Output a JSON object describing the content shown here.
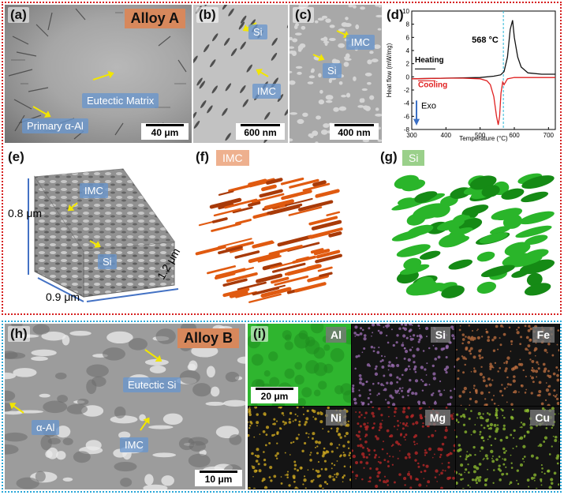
{
  "panels": {
    "a": {
      "label": "(a)",
      "title": "Alloy A",
      "tag_eutectic": "Eutectic Matrix",
      "tag_primary": "Primary α-Al",
      "scale": "40 μm"
    },
    "b": {
      "label": "(b)",
      "tag_si": "Si",
      "tag_imc": "IMC",
      "scale": "600 nm"
    },
    "c": {
      "label": "(c)",
      "tag_imc": "IMC",
      "tag_si": "Si",
      "scale": "400 nm"
    },
    "d": {
      "label": "(d)"
    },
    "e": {
      "label": "(e)",
      "tag_imc": "IMC",
      "tag_si": "Si",
      "dim_height": "0.8 μm",
      "dim_width": "0.9 μm",
      "dim_depth": "1.2 μm"
    },
    "f": {
      "label": "(f)",
      "tag": "IMC"
    },
    "g": {
      "label": "(g)",
      "tag": "Si"
    },
    "h": {
      "label": "(h)",
      "title": "Alloy B",
      "tag_eutectic": "Eutectic Si",
      "tag_al": "α-Al",
      "tag_imc": "IMC",
      "scale": "10 μm"
    },
    "i": {
      "label": "(i)",
      "scale": "20 μm",
      "maps": [
        {
          "element": "Al",
          "color": "#2fb52f"
        },
        {
          "element": "Si",
          "color": "#a070b8"
        },
        {
          "element": "Fe",
          "color": "#c07040"
        },
        {
          "element": "Ni",
          "color": "#d8b020"
        },
        {
          "element": "Mg",
          "color": "#c02828"
        },
        {
          "element": "Cu",
          "color": "#90c030"
        }
      ]
    }
  },
  "chart_data": {
    "type": "line",
    "xlabel": "Temperature (°C)",
    "ylabel": "Heat flow (mW/mg)",
    "xlim": [
      300,
      720
    ],
    "ylim": [
      -8,
      10
    ],
    "xticks": [
      300,
      400,
      500,
      600,
      700
    ],
    "yticks": [
      -8,
      -6,
      -4,
      -2,
      0,
      2,
      4,
      6,
      8,
      10
    ],
    "annotation_peak": "568 °C",
    "marker_x": 568,
    "heating_label": "Heating",
    "cooling_label": "Cooling",
    "exo_label": "Exo",
    "series": [
      {
        "name": "Heating",
        "color": "#111111",
        "x": [
          300,
          400,
          500,
          540,
          560,
          570,
          580,
          588,
          595,
          600,
          610,
          620,
          640,
          680,
          720
        ],
        "y": [
          -0.3,
          -0.2,
          -0.1,
          0.1,
          0.3,
          0.8,
          3.0,
          7.2,
          8.6,
          6.0,
          3.0,
          1.5,
          0.6,
          0.4,
          0.4
        ]
      },
      {
        "name": "Cooling",
        "color": "#e02020",
        "x": [
          300,
          400,
          450,
          500,
          520,
          530,
          540,
          548,
          553,
          557,
          561,
          566,
          570,
          580,
          600,
          650,
          720
        ],
        "y": [
          -0.3,
          -0.2,
          -0.2,
          -0.3,
          -0.6,
          -1.2,
          -3.0,
          -6.0,
          -7.3,
          -6.0,
          -2.5,
          -0.8,
          -1.2,
          -0.3,
          -0.1,
          -0.1,
          -0.1
        ]
      }
    ]
  }
}
